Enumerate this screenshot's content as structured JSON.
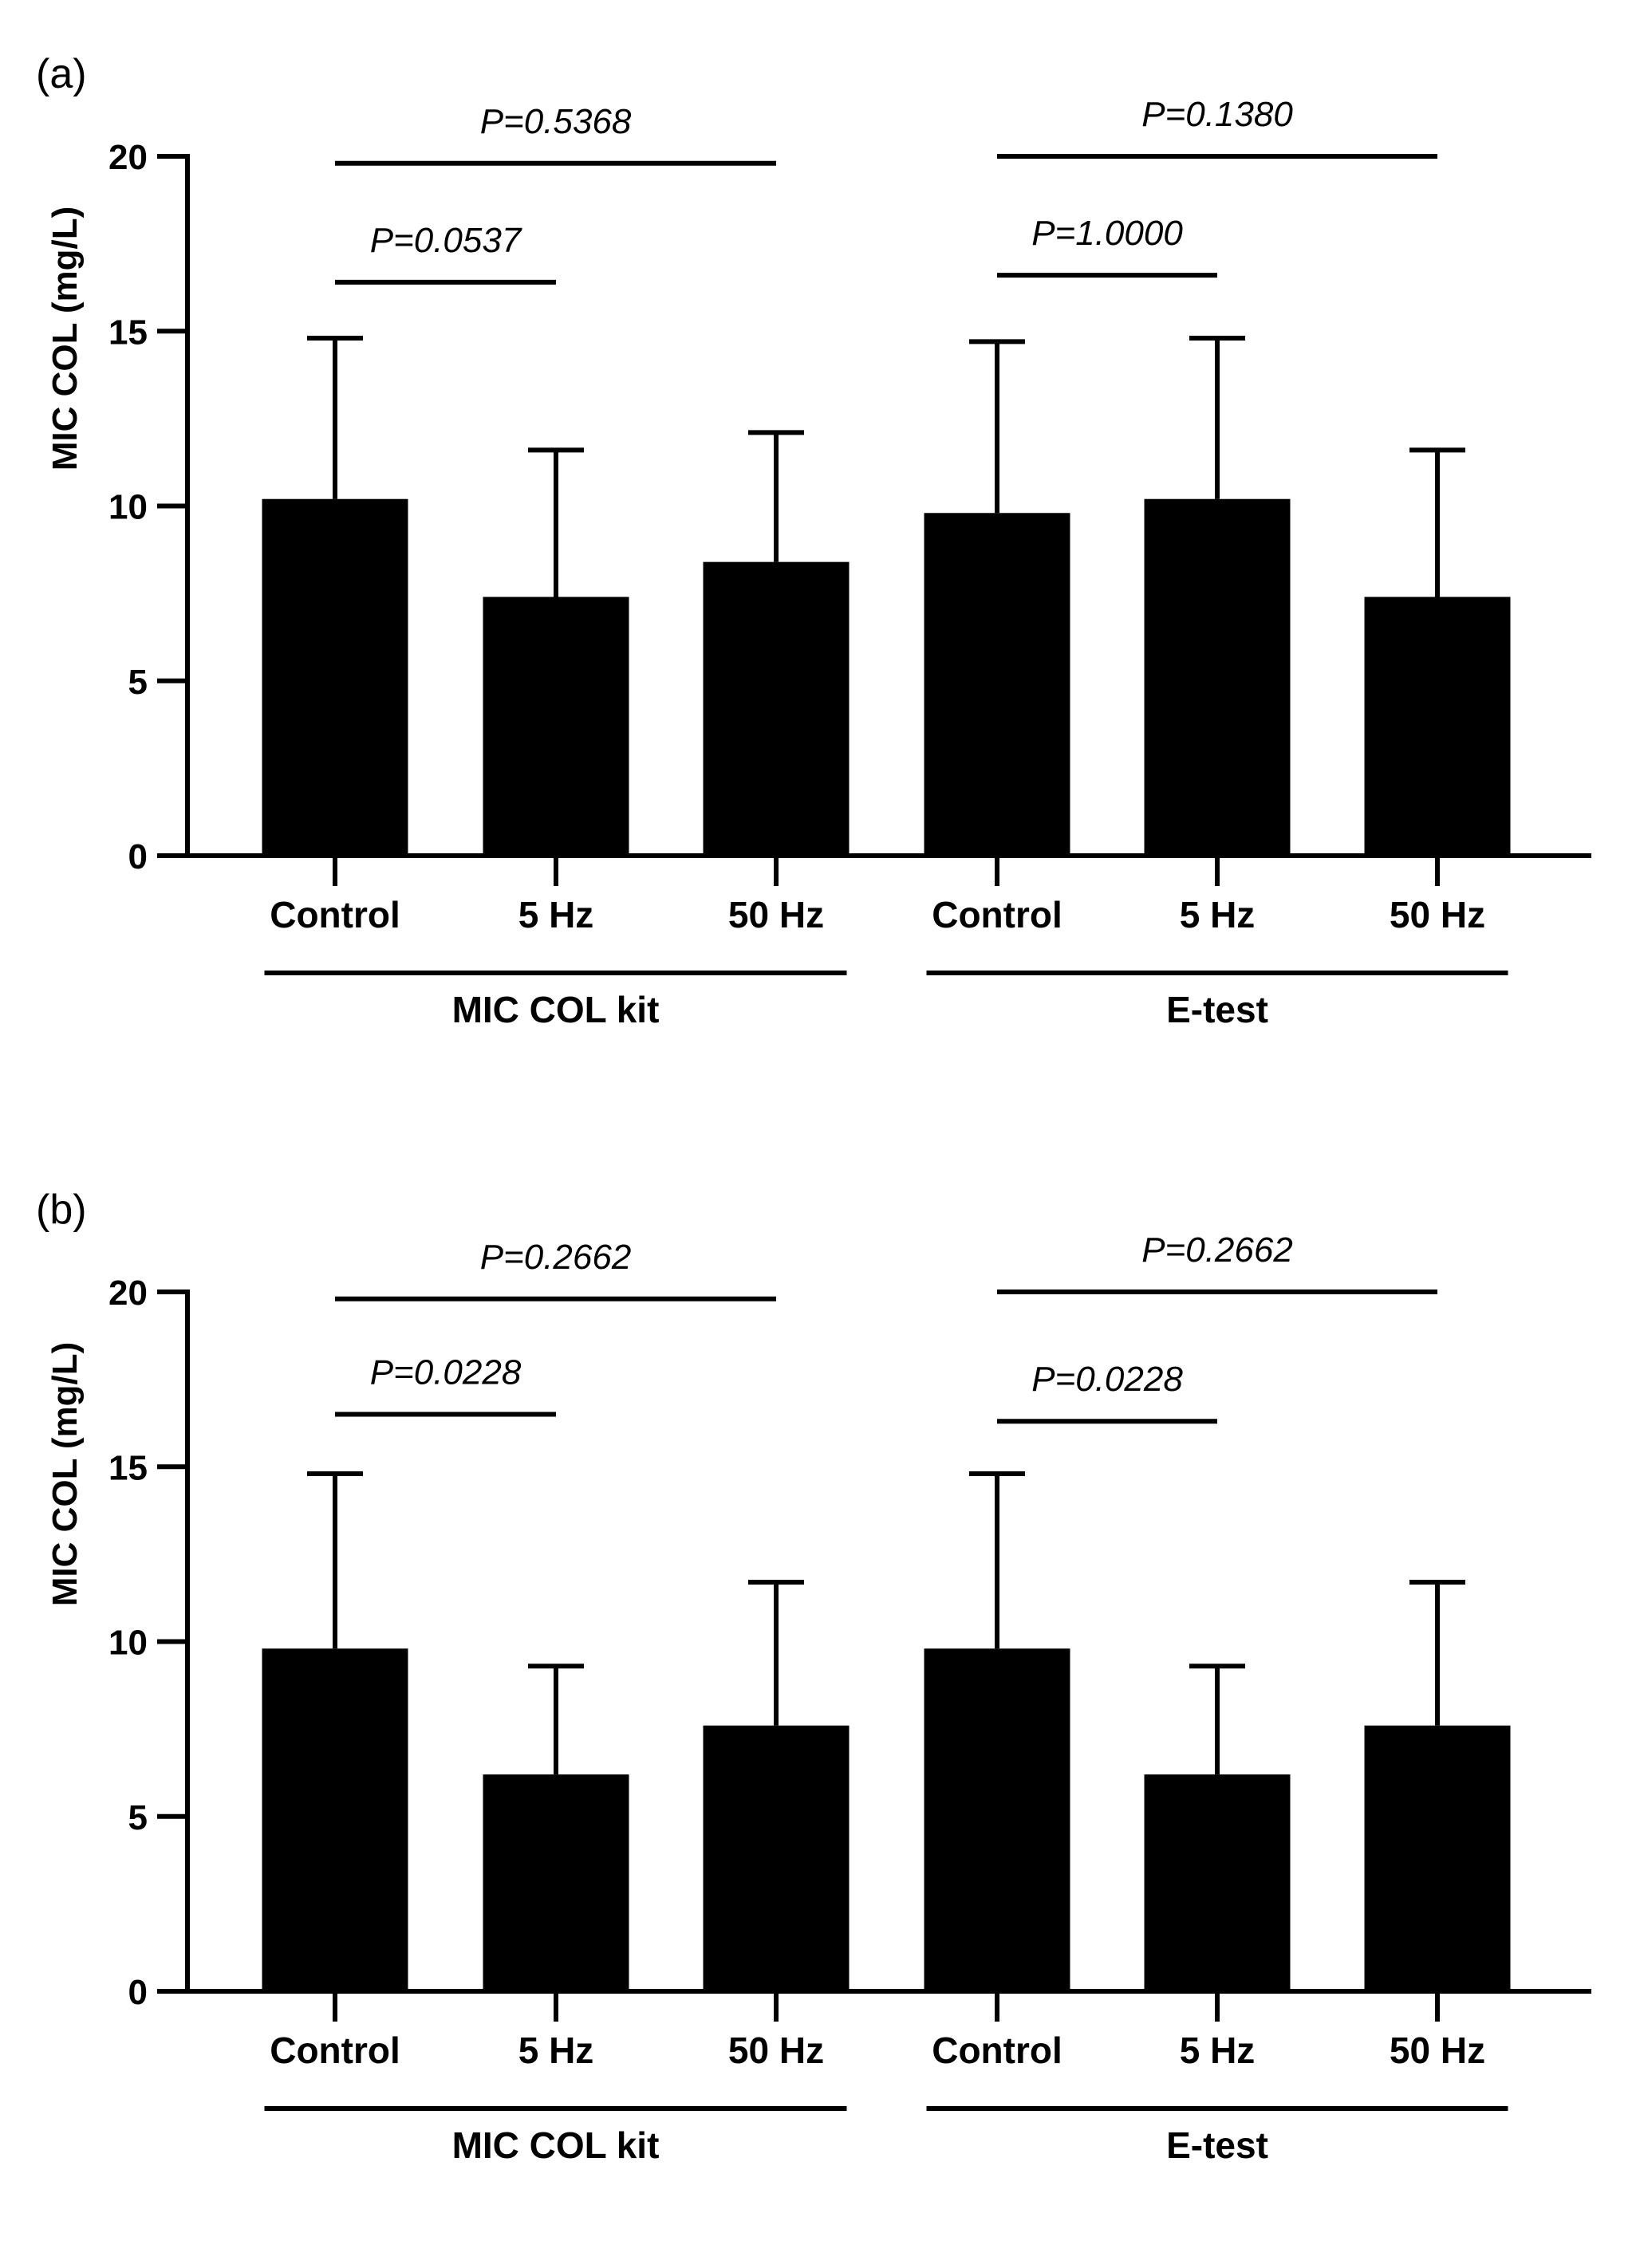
{
  "chart_data": [
    {
      "type": "bar",
      "panel_label": "(a)",
      "ylabel": "MIC COL (mg/L)",
      "ylim": [
        0,
        20
      ],
      "yticks": [
        0,
        5,
        10,
        15,
        20
      ],
      "groups": [
        {
          "label": "MIC COL kit",
          "categories": [
            "Control",
            "5 Hz",
            "50 Hz"
          ],
          "values": [
            10.2,
            7.4,
            8.4
          ],
          "errors": [
            4.6,
            4.2,
            3.7
          ]
        },
        {
          "label": "E-test",
          "categories": [
            "Control",
            "5 Hz",
            "50 Hz"
          ],
          "values": [
            9.8,
            10.2,
            7.4
          ],
          "errors": [
            4.9,
            4.6,
            4.2
          ]
        }
      ],
      "comparisons": [
        {
          "group": 0,
          "from": 0,
          "to": 2,
          "level": 19.8,
          "text": "P=0.5368"
        },
        {
          "group": 0,
          "from": 0,
          "to": 1,
          "level": 16.4,
          "text": "P=0.0537"
        },
        {
          "group": 1,
          "from": 0,
          "to": 2,
          "level": 20.0,
          "text": "P=0.1380"
        },
        {
          "group": 1,
          "from": 0,
          "to": 1,
          "level": 16.6,
          "text": "P=1.0000"
        }
      ]
    },
    {
      "type": "bar",
      "panel_label": "(b)",
      "ylabel": "MIC COL (mg/L)",
      "ylim": [
        0,
        20
      ],
      "yticks": [
        0,
        5,
        10,
        15,
        20
      ],
      "groups": [
        {
          "label": "MIC COL kit",
          "categories": [
            "Control",
            "5 Hz",
            "50 Hz"
          ],
          "values": [
            9.8,
            6.2,
            7.6
          ],
          "errors": [
            5.0,
            3.1,
            4.1
          ]
        },
        {
          "label": "E-test",
          "categories": [
            "Control",
            "5 Hz",
            "50 Hz"
          ],
          "values": [
            9.8,
            6.2,
            7.6
          ],
          "errors": [
            5.0,
            3.1,
            4.1
          ]
        }
      ],
      "comparisons": [
        {
          "group": 0,
          "from": 0,
          "to": 2,
          "level": 19.8,
          "text": "P=0.2662"
        },
        {
          "group": 0,
          "from": 0,
          "to": 1,
          "level": 16.5,
          "text": "P=0.0228"
        },
        {
          "group": 1,
          "from": 0,
          "to": 2,
          "level": 20.0,
          "text": "P=0.2662"
        },
        {
          "group": 1,
          "from": 0,
          "to": 1,
          "level": 16.3,
          "text": "P=0.0228"
        }
      ]
    }
  ]
}
